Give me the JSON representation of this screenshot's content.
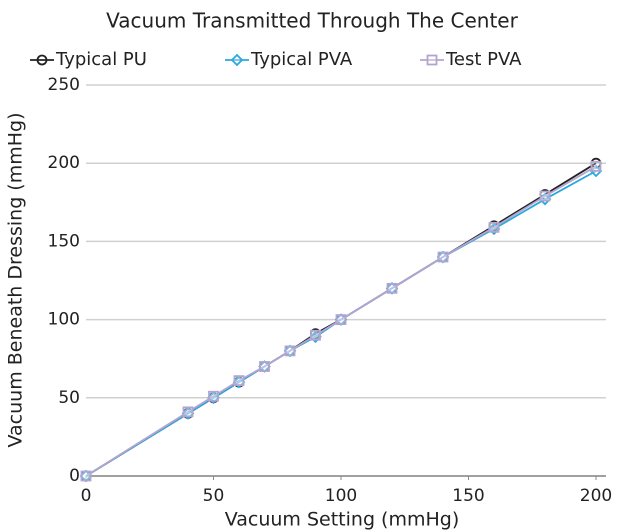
{
  "chart_data": {
    "type": "line",
    "title": "Vacuum Transmitted Through The Center",
    "x_label": "Vacuum Setting (mmHg)",
    "y_label": "Vacuum Beneath Dressing (mmHg)",
    "x": [
      0,
      40,
      50,
      60,
      70,
      80,
      90,
      100,
      120,
      140,
      160,
      180,
      200
    ],
    "series": [
      {
        "name": "Typical PU",
        "color": "#222222",
        "marker": "circle",
        "values": [
          0,
          40,
          50,
          60,
          70,
          80,
          91,
          100,
          120,
          140,
          160,
          180,
          200
        ]
      },
      {
        "name": "Typical PVA",
        "color": "#29a8e0",
        "marker": "diamond",
        "values": [
          0,
          40,
          50,
          60,
          70,
          80,
          89,
          100,
          120,
          140,
          158,
          177,
          195
        ]
      },
      {
        "name": "Test PVA",
        "color": "#b4a4d0",
        "marker": "square",
        "values": [
          0,
          41,
          51,
          61,
          70,
          80,
          90,
          100,
          120,
          140,
          159,
          179,
          198
        ]
      }
    ],
    "xlim": [
      0,
      200
    ],
    "xticks": [
      0,
      50,
      100,
      150,
      200
    ],
    "ylim": [
      0,
      250
    ],
    "yticks": [
      0,
      50,
      100,
      150,
      200,
      250
    ],
    "grid": true,
    "legend": "top"
  }
}
